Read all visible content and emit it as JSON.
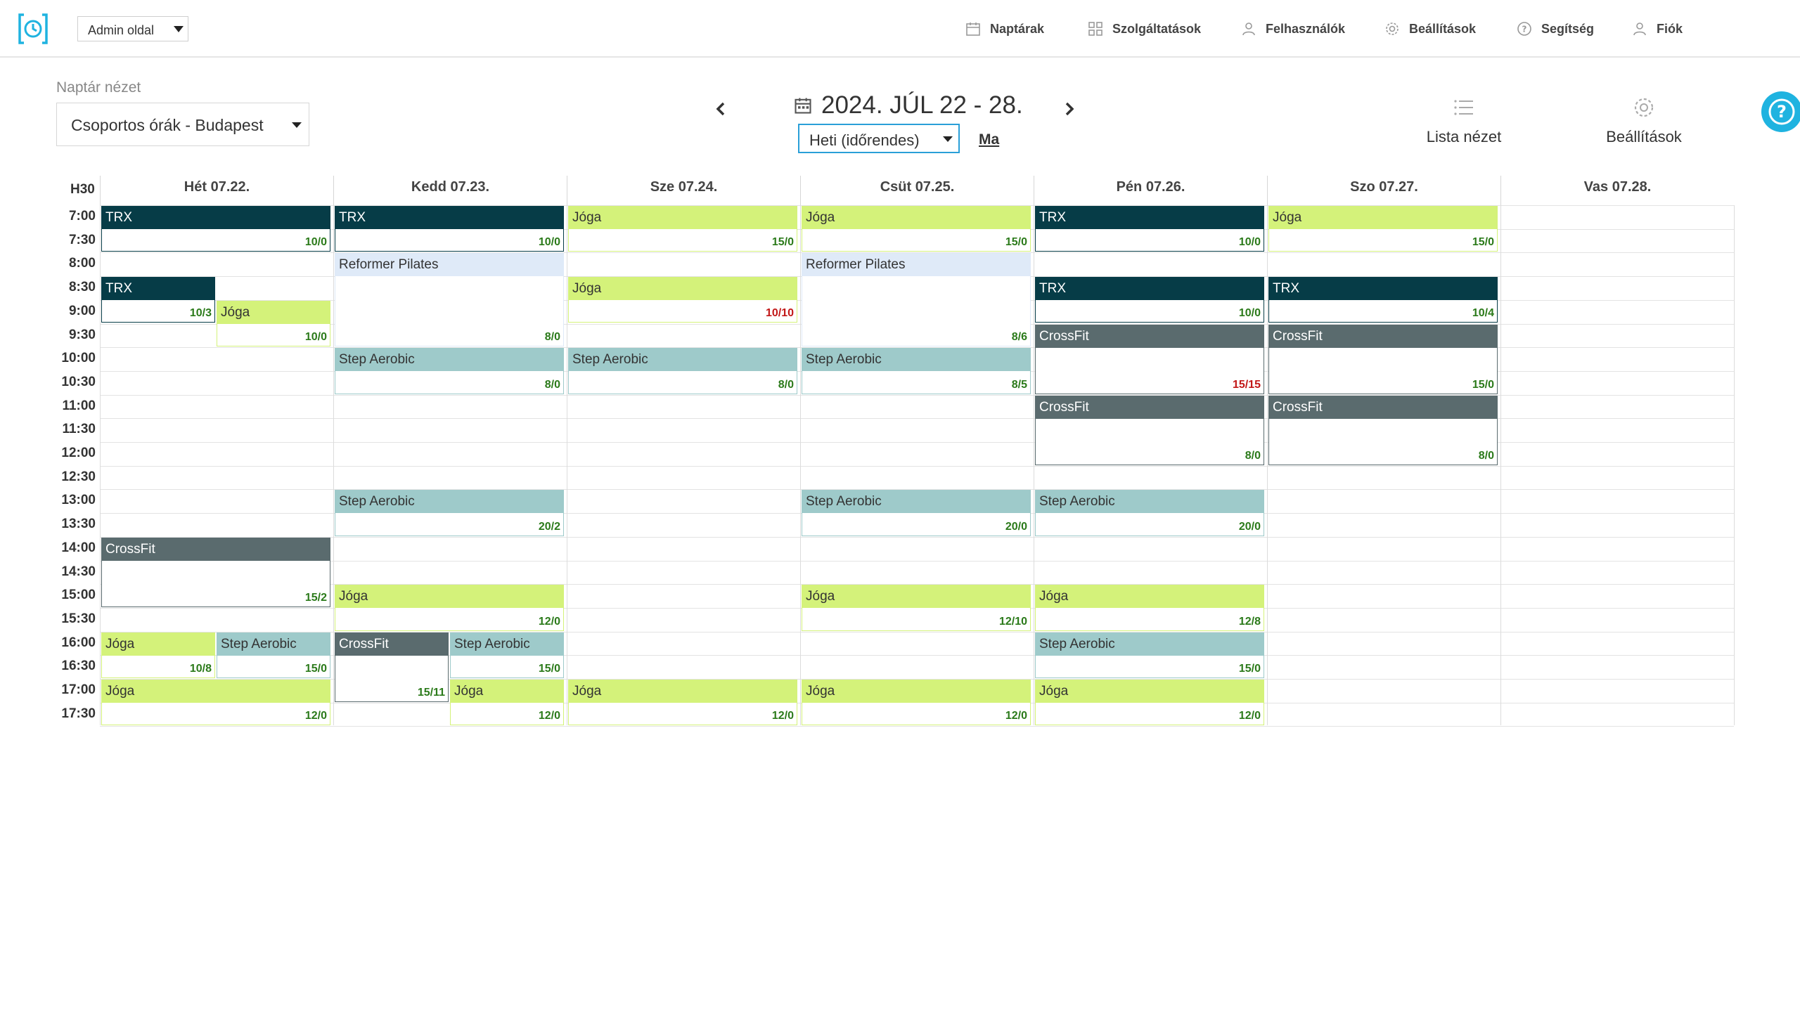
{
  "admin_select": {
    "label": "Admin oldal"
  },
  "nav": [
    {
      "label": "Naptárak",
      "icon": "calendar-icon"
    },
    {
      "label": "Szolgáltatások",
      "icon": "grid-icon"
    },
    {
      "label": "Felhasználók",
      "icon": "users-icon"
    },
    {
      "label": "Beállítások",
      "icon": "gear-icon"
    },
    {
      "label": "Segítség",
      "icon": "help-icon"
    },
    {
      "label": "Fiók",
      "icon": "user-icon"
    }
  ],
  "calendar_view": {
    "caption": "Naptár nézet",
    "selected": "Csoportos órák - Budapest"
  },
  "date_range": "2024. JÚL 22 - 28.",
  "mode_select": {
    "selected": "Heti (időrendes)"
  },
  "today_label": "Ma",
  "tools": {
    "list_view": "Lista nézet",
    "settings": "Beállítások"
  },
  "week_label": "H30",
  "days": [
    "Hét 07.22.",
    "Kedd 07.23.",
    "Sze 07.24.",
    "Csüt 07.25.",
    "Pén 07.26.",
    "Szo 07.27.",
    "Vas 07.28."
  ],
  "times": [
    "7:00",
    "7:30",
    "8:00",
    "8:30",
    "9:00",
    "9:30",
    "10:00",
    "10:30",
    "11:00",
    "11:30",
    "12:00",
    "12:30",
    "13:00",
    "13:30",
    "14:00",
    "14:30",
    "15:00",
    "15:30",
    "16:00",
    "16:30",
    "17:00",
    "17:30"
  ],
  "colors": {
    "TRX": "#063c47",
    "Jóga": "#d4f27a",
    "Step Aerobic": "#9ecaca",
    "CrossFit": "#5a6b6e",
    "Reformer Pilates": "#dfeaf8",
    "count_ok": "#2b7a1a",
    "count_full": "#c21818",
    "accent": "#1fb3e0"
  },
  "events": [
    {
      "day": 0,
      "start": "7:00",
      "end": "8:00",
      "title": "TRX",
      "count": "10/0",
      "lane": 0,
      "lanes": 1
    },
    {
      "day": 0,
      "start": "8:30",
      "end": "9:30",
      "title": "TRX",
      "count": "10/3",
      "lane": 0,
      "lanes": 2
    },
    {
      "day": 0,
      "start": "9:00",
      "end": "10:00",
      "title": "Jóga",
      "count": "10/0",
      "lane": 1,
      "lanes": 2
    },
    {
      "day": 0,
      "start": "14:00",
      "end": "15:30",
      "title": "CrossFit",
      "count": "15/2",
      "lane": 0,
      "lanes": 1
    },
    {
      "day": 0,
      "start": "16:00",
      "end": "17:00",
      "title": "Jóga",
      "count": "10/8",
      "lane": 0,
      "lanes": 2
    },
    {
      "day": 0,
      "start": "16:00",
      "end": "17:00",
      "title": "Step Aerobic",
      "count": "15/0",
      "lane": 1,
      "lanes": 2
    },
    {
      "day": 0,
      "start": "17:00",
      "end": "18:00",
      "title": "Jóga",
      "count": "12/0",
      "lane": 0,
      "lanes": 1
    },
    {
      "day": 1,
      "start": "7:00",
      "end": "8:00",
      "title": "TRX",
      "count": "10/0",
      "lane": 0,
      "lanes": 1
    },
    {
      "day": 1,
      "start": "8:00",
      "end": "10:00",
      "title": "Reformer Pilates",
      "count": "8/0",
      "lane": 0,
      "lanes": 1
    },
    {
      "day": 1,
      "start": "10:00",
      "end": "11:00",
      "title": "Step Aerobic",
      "count": "8/0",
      "lane": 0,
      "lanes": 1
    },
    {
      "day": 1,
      "start": "13:00",
      "end": "14:00",
      "title": "Step Aerobic",
      "count": "20/2",
      "lane": 0,
      "lanes": 1
    },
    {
      "day": 1,
      "start": "15:00",
      "end": "16:00",
      "title": "Jóga",
      "count": "12/0",
      "lane": 0,
      "lanes": 1
    },
    {
      "day": 1,
      "start": "16:00",
      "end": "17:30",
      "title": "CrossFit",
      "count": "15/11",
      "lane": 0,
      "lanes": 2
    },
    {
      "day": 1,
      "start": "16:00",
      "end": "17:00",
      "title": "Step Aerobic",
      "count": "15/0",
      "lane": 1,
      "lanes": 2
    },
    {
      "day": 1,
      "start": "17:00",
      "end": "18:00",
      "title": "Jóga",
      "count": "12/0",
      "lane": 1,
      "lanes": 2
    },
    {
      "day": 2,
      "start": "7:00",
      "end": "8:00",
      "title": "Jóga",
      "count": "15/0",
      "lane": 0,
      "lanes": 1
    },
    {
      "day": 2,
      "start": "8:30",
      "end": "9:30",
      "title": "Jóga",
      "count": "10/10",
      "full": true,
      "lane": 0,
      "lanes": 1
    },
    {
      "day": 2,
      "start": "10:00",
      "end": "11:00",
      "title": "Step Aerobic",
      "count": "8/0",
      "lane": 0,
      "lanes": 1
    },
    {
      "day": 2,
      "start": "17:00",
      "end": "18:00",
      "title": "Jóga",
      "count": "12/0",
      "lane": 0,
      "lanes": 1
    },
    {
      "day": 3,
      "start": "7:00",
      "end": "8:00",
      "title": "Jóga",
      "count": "15/0",
      "lane": 0,
      "lanes": 1
    },
    {
      "day": 3,
      "start": "8:00",
      "end": "10:00",
      "title": "Reformer Pilates",
      "count": "8/6",
      "lane": 0,
      "lanes": 1
    },
    {
      "day": 3,
      "start": "10:00",
      "end": "11:00",
      "title": "Step Aerobic",
      "count": "8/5",
      "lane": 0,
      "lanes": 1
    },
    {
      "day": 3,
      "start": "13:00",
      "end": "14:00",
      "title": "Step Aerobic",
      "count": "20/0",
      "lane": 0,
      "lanes": 1
    },
    {
      "day": 3,
      "start": "15:00",
      "end": "16:00",
      "title": "Jóga",
      "count": "12/10",
      "lane": 0,
      "lanes": 1
    },
    {
      "day": 3,
      "start": "17:00",
      "end": "18:00",
      "title": "Jóga",
      "count": "12/0",
      "lane": 0,
      "lanes": 1
    },
    {
      "day": 4,
      "start": "7:00",
      "end": "8:00",
      "title": "TRX",
      "count": "10/0",
      "lane": 0,
      "lanes": 1
    },
    {
      "day": 4,
      "start": "8:30",
      "end": "9:30",
      "title": "TRX",
      "count": "10/0",
      "lane": 0,
      "lanes": 1
    },
    {
      "day": 4,
      "start": "9:30",
      "end": "11:00",
      "title": "CrossFit",
      "count": "15/15",
      "full": true,
      "lane": 0,
      "lanes": 1
    },
    {
      "day": 4,
      "start": "11:00",
      "end": "12:30",
      "title": "CrossFit",
      "count": "8/0",
      "lane": 0,
      "lanes": 1
    },
    {
      "day": 4,
      "start": "13:00",
      "end": "14:00",
      "title": "Step Aerobic",
      "count": "20/0",
      "lane": 0,
      "lanes": 1
    },
    {
      "day": 4,
      "start": "15:00",
      "end": "16:00",
      "title": "Jóga",
      "count": "12/8",
      "lane": 0,
      "lanes": 1
    },
    {
      "day": 4,
      "start": "16:00",
      "end": "17:00",
      "title": "Step Aerobic",
      "count": "15/0",
      "lane": 0,
      "lanes": 1
    },
    {
      "day": 4,
      "start": "17:00",
      "end": "18:00",
      "title": "Jóga",
      "count": "12/0",
      "lane": 0,
      "lanes": 1
    },
    {
      "day": 5,
      "start": "7:00",
      "end": "8:00",
      "title": "Jóga",
      "count": "15/0",
      "lane": 0,
      "lanes": 1
    },
    {
      "day": 5,
      "start": "8:30",
      "end": "9:30",
      "title": "TRX",
      "count": "10/4",
      "lane": 0,
      "lanes": 1
    },
    {
      "day": 5,
      "start": "9:30",
      "end": "11:00",
      "title": "CrossFit",
      "count": "15/0",
      "lane": 0,
      "lanes": 1
    },
    {
      "day": 5,
      "start": "11:00",
      "end": "12:30",
      "title": "CrossFit",
      "count": "8/0",
      "lane": 0,
      "lanes": 1
    }
  ]
}
